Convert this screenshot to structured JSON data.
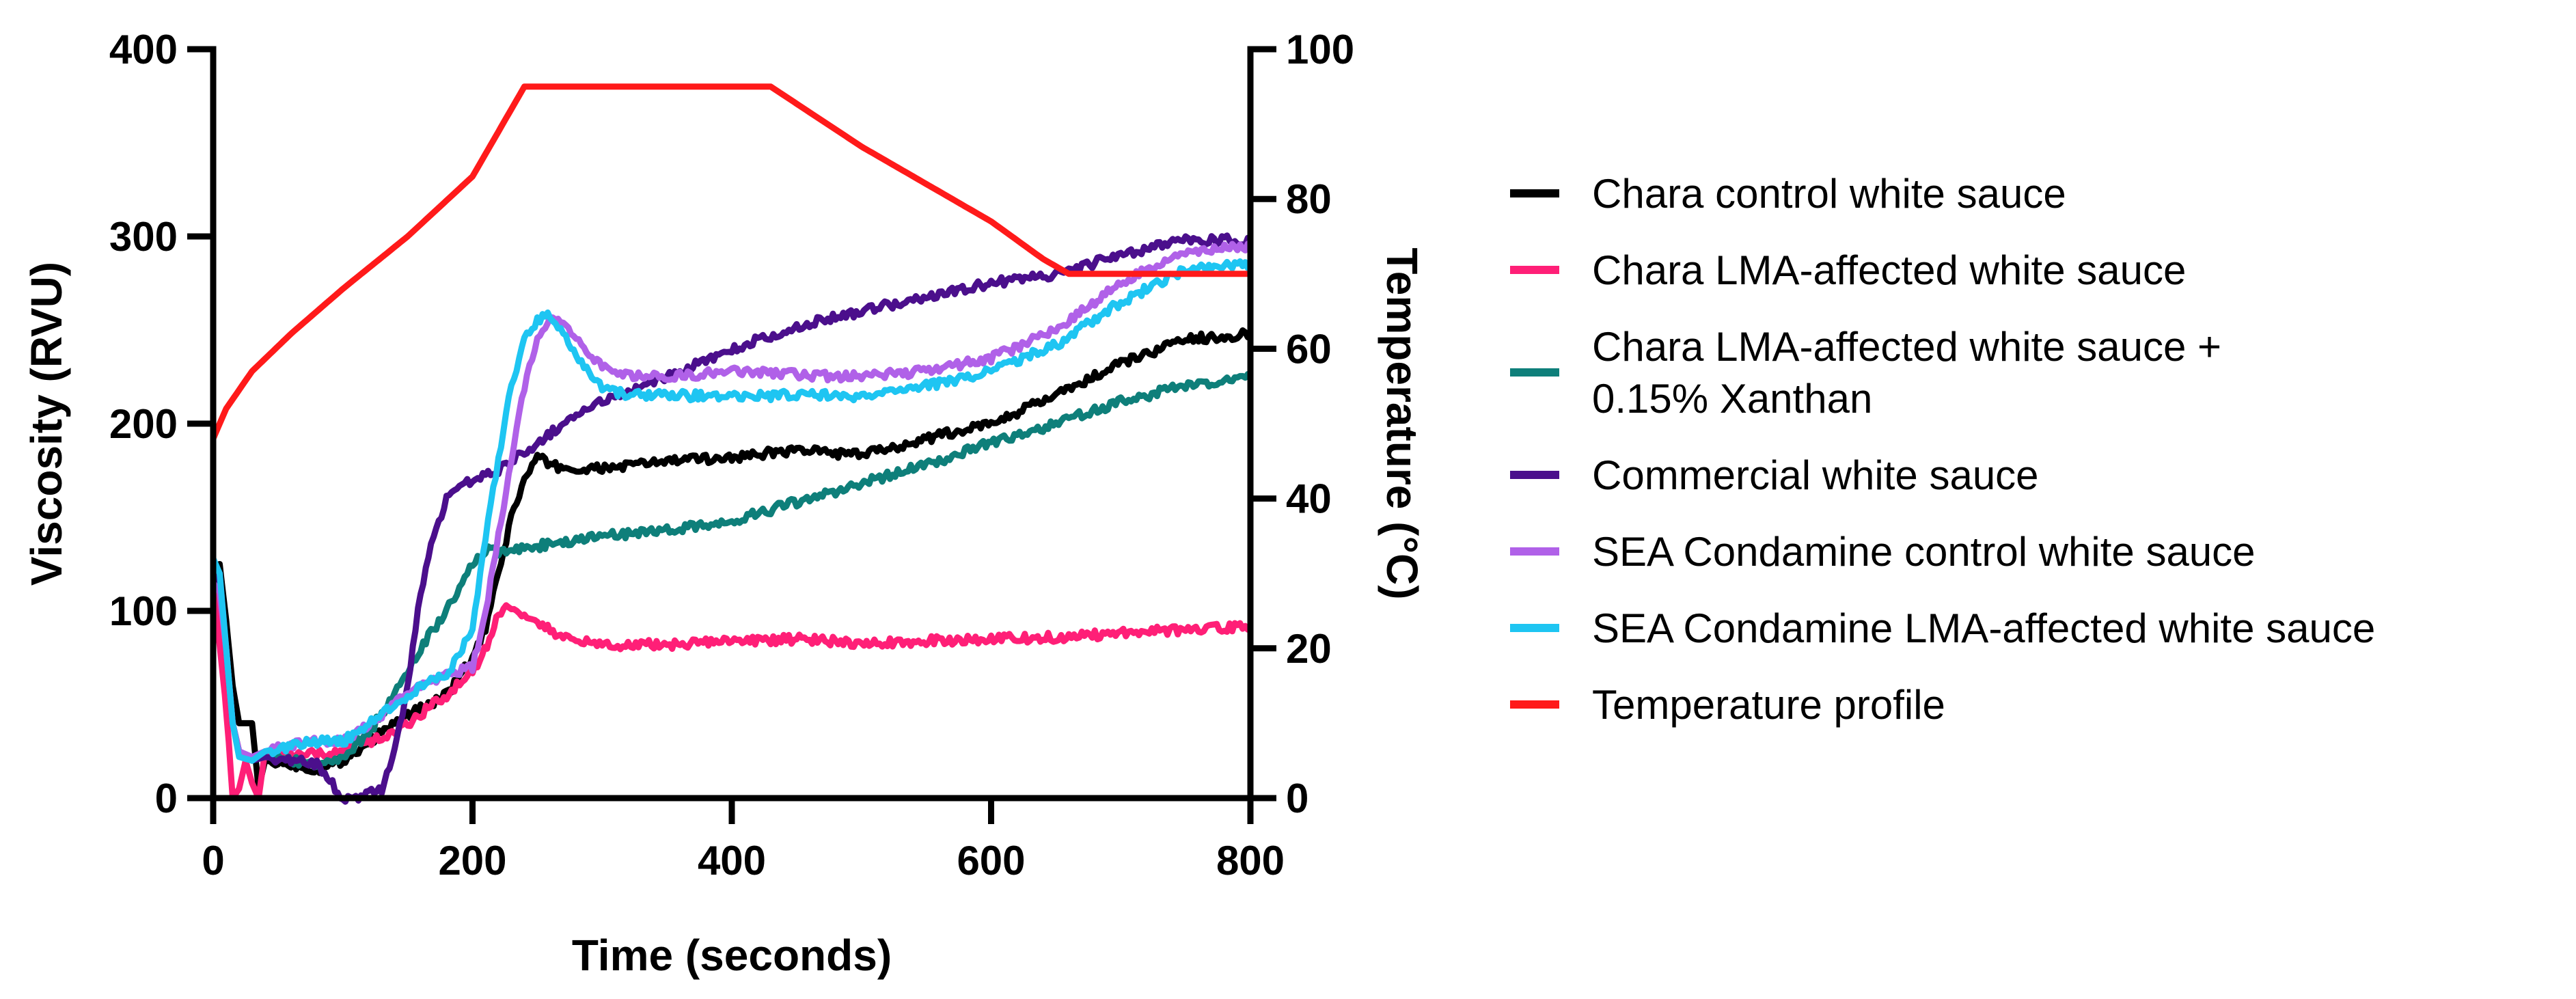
{
  "chart_data": {
    "type": "line",
    "title": "",
    "xlabel": "Time (seconds)",
    "ylabel": "Viscosity (RVU)",
    "y2label": "Temperature (°C)",
    "xlim": [
      0,
      800
    ],
    "ylim": [
      0,
      400
    ],
    "y2lim": [
      0,
      100
    ],
    "xticks": [
      "0",
      "200",
      "400",
      "600",
      "800"
    ],
    "yticks": [
      "0",
      "100",
      "200",
      "300",
      "400"
    ],
    "y2ticks": [
      "0",
      "20",
      "40",
      "60",
      "80",
      "100"
    ],
    "grid": false,
    "legend_position": "right",
    "series": [
      {
        "name": "Chara control white sauce",
        "color": "#000000",
        "axis": "left",
        "x": [
          0,
          5,
          10,
          15,
          20,
          30,
          35,
          40,
          60,
          80,
          100,
          120,
          140,
          160,
          180,
          200,
          210,
          220,
          230,
          240,
          250,
          260,
          280,
          300,
          350,
          400,
          450,
          500,
          550,
          600,
          650,
          700,
          750,
          800
        ],
        "y": [
          110,
          125,
          95,
          60,
          40,
          40,
          5,
          20,
          18,
          15,
          20,
          30,
          40,
          48,
          55,
          75,
          90,
          120,
          150,
          170,
          182,
          178,
          175,
          176,
          180,
          182,
          186,
          183,
          192,
          200,
          215,
          232,
          245,
          248
        ]
      },
      {
        "name": "Chara LMA-affected white sauce",
        "color": "#ff1f77",
        "axis": "left",
        "x": [
          0,
          3,
          6,
          9,
          12,
          15,
          20,
          25,
          30,
          35,
          40,
          60,
          100,
          140,
          180,
          200,
          215,
          220,
          230,
          250,
          270,
          300,
          350,
          400,
          450,
          500,
          550,
          600,
          650,
          700,
          750,
          800
        ],
        "y": [
          120,
          95,
          75,
          55,
          30,
          0,
          5,
          20,
          8,
          0,
          25,
          22,
          25,
          35,
          55,
          68,
          85,
          100,
          102,
          95,
          85,
          82,
          82,
          84,
          85,
          83,
          84,
          85,
          86,
          88,
          90,
          92
        ]
      },
      {
        "name": "Chara LMA-affected white sauce + 0.15% Xanthan",
        "color": "#0e7f7a",
        "axis": "left",
        "x": [
          0,
          5,
          10,
          15,
          20,
          30,
          40,
          60,
          80,
          100,
          120,
          140,
          160,
          180,
          200,
          210,
          220,
          240,
          260,
          300,
          350,
          400,
          450,
          500,
          550,
          600,
          650,
          700,
          750,
          800
        ],
        "y": [
          125,
          115,
          80,
          40,
          25,
          20,
          22,
          20,
          18,
          22,
          35,
          55,
          80,
          100,
          125,
          132,
          132,
          133,
          136,
          140,
          143,
          148,
          158,
          168,
          178,
          190,
          200,
          212,
          220,
          225
        ]
      },
      {
        "name": "Commercial white sauce",
        "color": "#4b0f8c",
        "axis": "left",
        "x": [
          0,
          5,
          10,
          15,
          20,
          30,
          40,
          60,
          80,
          100,
          110,
          120,
          130,
          140,
          150,
          160,
          170,
          180,
          200,
          220,
          240,
          260,
          300,
          350,
          400,
          450,
          500,
          550,
          600,
          650,
          700,
          750,
          800
        ],
        "y": [
          115,
          120,
          80,
          40,
          25,
          20,
          22,
          20,
          18,
          0,
          0,
          2,
          5,
          25,
          60,
          110,
          140,
          160,
          170,
          175,
          185,
          195,
          212,
          225,
          240,
          252,
          260,
          268,
          275,
          280,
          290,
          298,
          298
        ]
      },
      {
        "name": "SEA Condamine control white sauce",
        "color": "#b061e8",
        "axis": "left",
        "x": [
          0,
          5,
          10,
          15,
          20,
          30,
          40,
          60,
          80,
          100,
          120,
          140,
          160,
          180,
          200,
          210,
          220,
          230,
          240,
          250,
          260,
          270,
          280,
          300,
          320,
          350,
          400,
          450,
          500,
          550,
          600,
          650,
          700,
          750,
          800
        ],
        "y": [
          115,
          110,
          80,
          40,
          25,
          22,
          25,
          28,
          30,
          30,
          40,
          50,
          60,
          65,
          70,
          100,
          140,
          180,
          220,
          245,
          255,
          255,
          245,
          230,
          225,
          225,
          228,
          226,
          225,
          228,
          235,
          250,
          275,
          292,
          295
        ]
      },
      {
        "name": "SEA Condamine LMA-affected white sauce",
        "color": "#1ec5f2",
        "axis": "left",
        "x": [
          0,
          5,
          10,
          15,
          20,
          30,
          40,
          60,
          80,
          100,
          120,
          140,
          160,
          180,
          200,
          210,
          220,
          230,
          240,
          250,
          260,
          270,
          280,
          300,
          320,
          350,
          400,
          450,
          500,
          550,
          600,
          650,
          700,
          750,
          800
        ],
        "y": [
          128,
          120,
          80,
          40,
          22,
          20,
          25,
          28,
          30,
          30,
          40,
          50,
          60,
          65,
          90,
          140,
          180,
          220,
          245,
          255,
          258,
          250,
          235,
          220,
          215,
          215,
          215,
          215,
          215,
          220,
          228,
          242,
          265,
          282,
          285
        ]
      },
      {
        "name": "Temperature profile",
        "color": "#ff1a1a",
        "axis": "right",
        "x": [
          0,
          10,
          30,
          60,
          100,
          150,
          200,
          240,
          245,
          250,
          300,
          350,
          400,
          430,
          500,
          550,
          600,
          640,
          660,
          700,
          750,
          800
        ],
        "y": [
          48,
          52,
          57,
          62,
          68,
          75,
          83,
          95,
          95,
          95,
          95,
          95,
          95,
          95,
          87,
          82,
          77,
          72,
          70,
          70,
          70,
          70
        ]
      }
    ],
    "legend_labels": [
      [
        "Chara control white sauce"
      ],
      [
        "Chara LMA-affected white sauce"
      ],
      [
        "Chara LMA-affected white sauce +",
        "0.15% Xanthan"
      ],
      [
        "Commercial white sauce"
      ],
      [
        "SEA Condamine control white sauce"
      ],
      [
        "SEA Condamine LMA-affected white sauce"
      ],
      [
        "Temperature profile"
      ]
    ]
  }
}
